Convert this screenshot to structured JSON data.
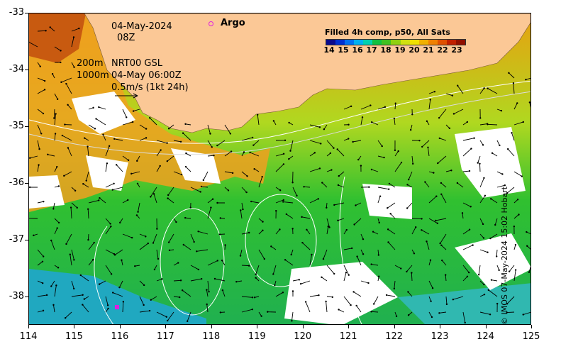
{
  "map": {
    "date": "04-May-2024",
    "time": "08Z",
    "depth_200": "200m",
    "depth_1000": "1000m",
    "current_product": "NRT00 GSL",
    "current_time": "04-May 06:00Z",
    "scale_label": "0.5m/s (1kt 24h)",
    "argo_label": "Argo",
    "credit": "© IMOS 07-May-2024 15:02 Hobart",
    "lon_ticks": [
      "114",
      "115",
      "116",
      "117",
      "118",
      "119",
      "120",
      "121",
      "122",
      "123",
      "124",
      "125"
    ],
    "lat_ticks": [
      "-33",
      "-34",
      "-35",
      "-36",
      "-37",
      "-38"
    ],
    "lon_range": [
      114,
      125
    ],
    "lat_range": [
      -38.5,
      -33
    ]
  },
  "colorbar": {
    "title": "Filled 4h comp, p50, All Sats",
    "ticks": [
      "14",
      "15",
      "16",
      "17",
      "18",
      "19",
      "20",
      "21",
      "22",
      "23"
    ],
    "colors": [
      "#0a0a8c",
      "#0030d0",
      "#0070f0",
      "#00b0f0",
      "#00d0b0",
      "#10c040",
      "#40c020",
      "#90d010",
      "#d0e010",
      "#f0e000",
      "#f0b000",
      "#f08000",
      "#e05000",
      "#c02000",
      "#901000"
    ]
  }
}
